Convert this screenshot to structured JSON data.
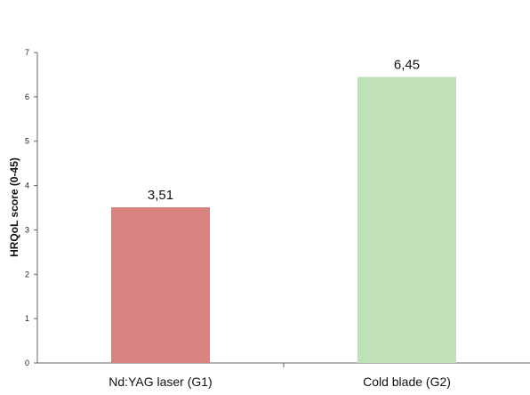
{
  "chart_data": {
    "type": "bar",
    "categories": [
      "Nd:YAG laser (G1)",
      "Cold blade (G2)"
    ],
    "values": [
      3.51,
      6.45
    ],
    "value_labels": [
      "3,51",
      "6,45"
    ],
    "colors": [
      "#d98380",
      "#bfe0b8"
    ],
    "ylabel": "HRQoL score (0-45)",
    "ylim": [
      0,
      7
    ],
    "yticks": [
      "0",
      "1",
      "2",
      "3",
      "4",
      "5",
      "6",
      "7"
    ],
    "grid": false
  }
}
